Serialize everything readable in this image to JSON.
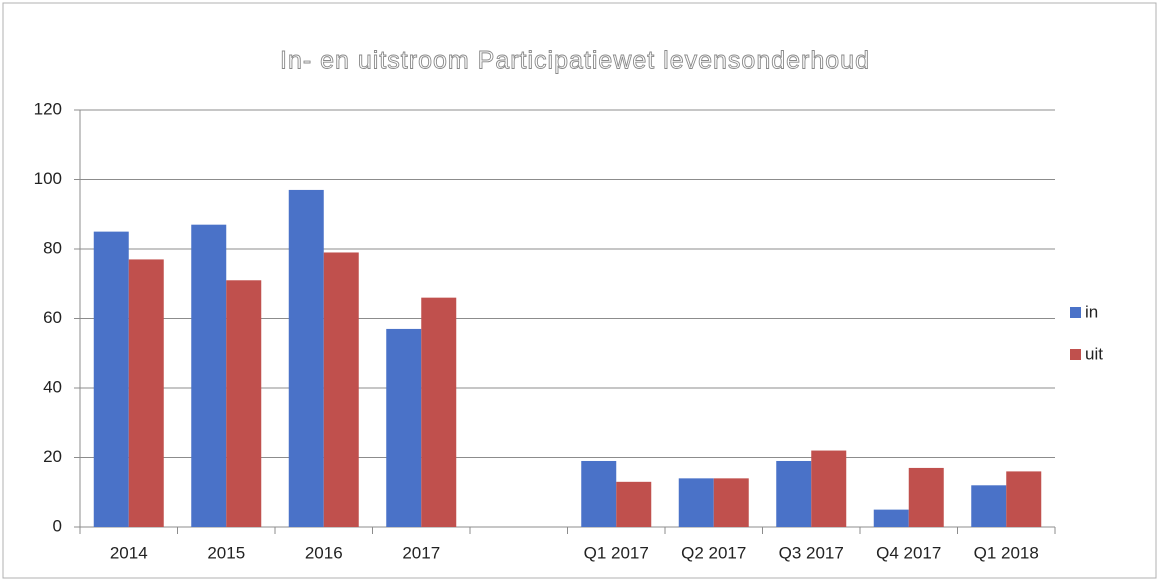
{
  "chart_data": {
    "type": "bar",
    "title": "In- en uitstroom Participatiewet levensonderhoud",
    "categories": [
      "2014",
      "2015",
      "2016",
      "2017",
      null,
      "Q1 2017",
      "Q2 2017",
      "Q3 2017",
      "Q4 2017",
      "Q1 2018"
    ],
    "series": [
      {
        "name": "in",
        "color": "#4a72c8",
        "values": [
          85,
          87,
          97,
          57,
          null,
          19,
          14,
          19,
          5,
          12
        ]
      },
      {
        "name": "uit",
        "color": "#c0504d",
        "values": [
          77,
          71,
          79,
          66,
          null,
          13,
          14,
          22,
          17,
          16
        ]
      }
    ],
    "ylim": [
      0,
      120
    ],
    "yticks": [
      0,
      20,
      40,
      60,
      80,
      100,
      120
    ],
    "grid": true,
    "legend": "right"
  }
}
